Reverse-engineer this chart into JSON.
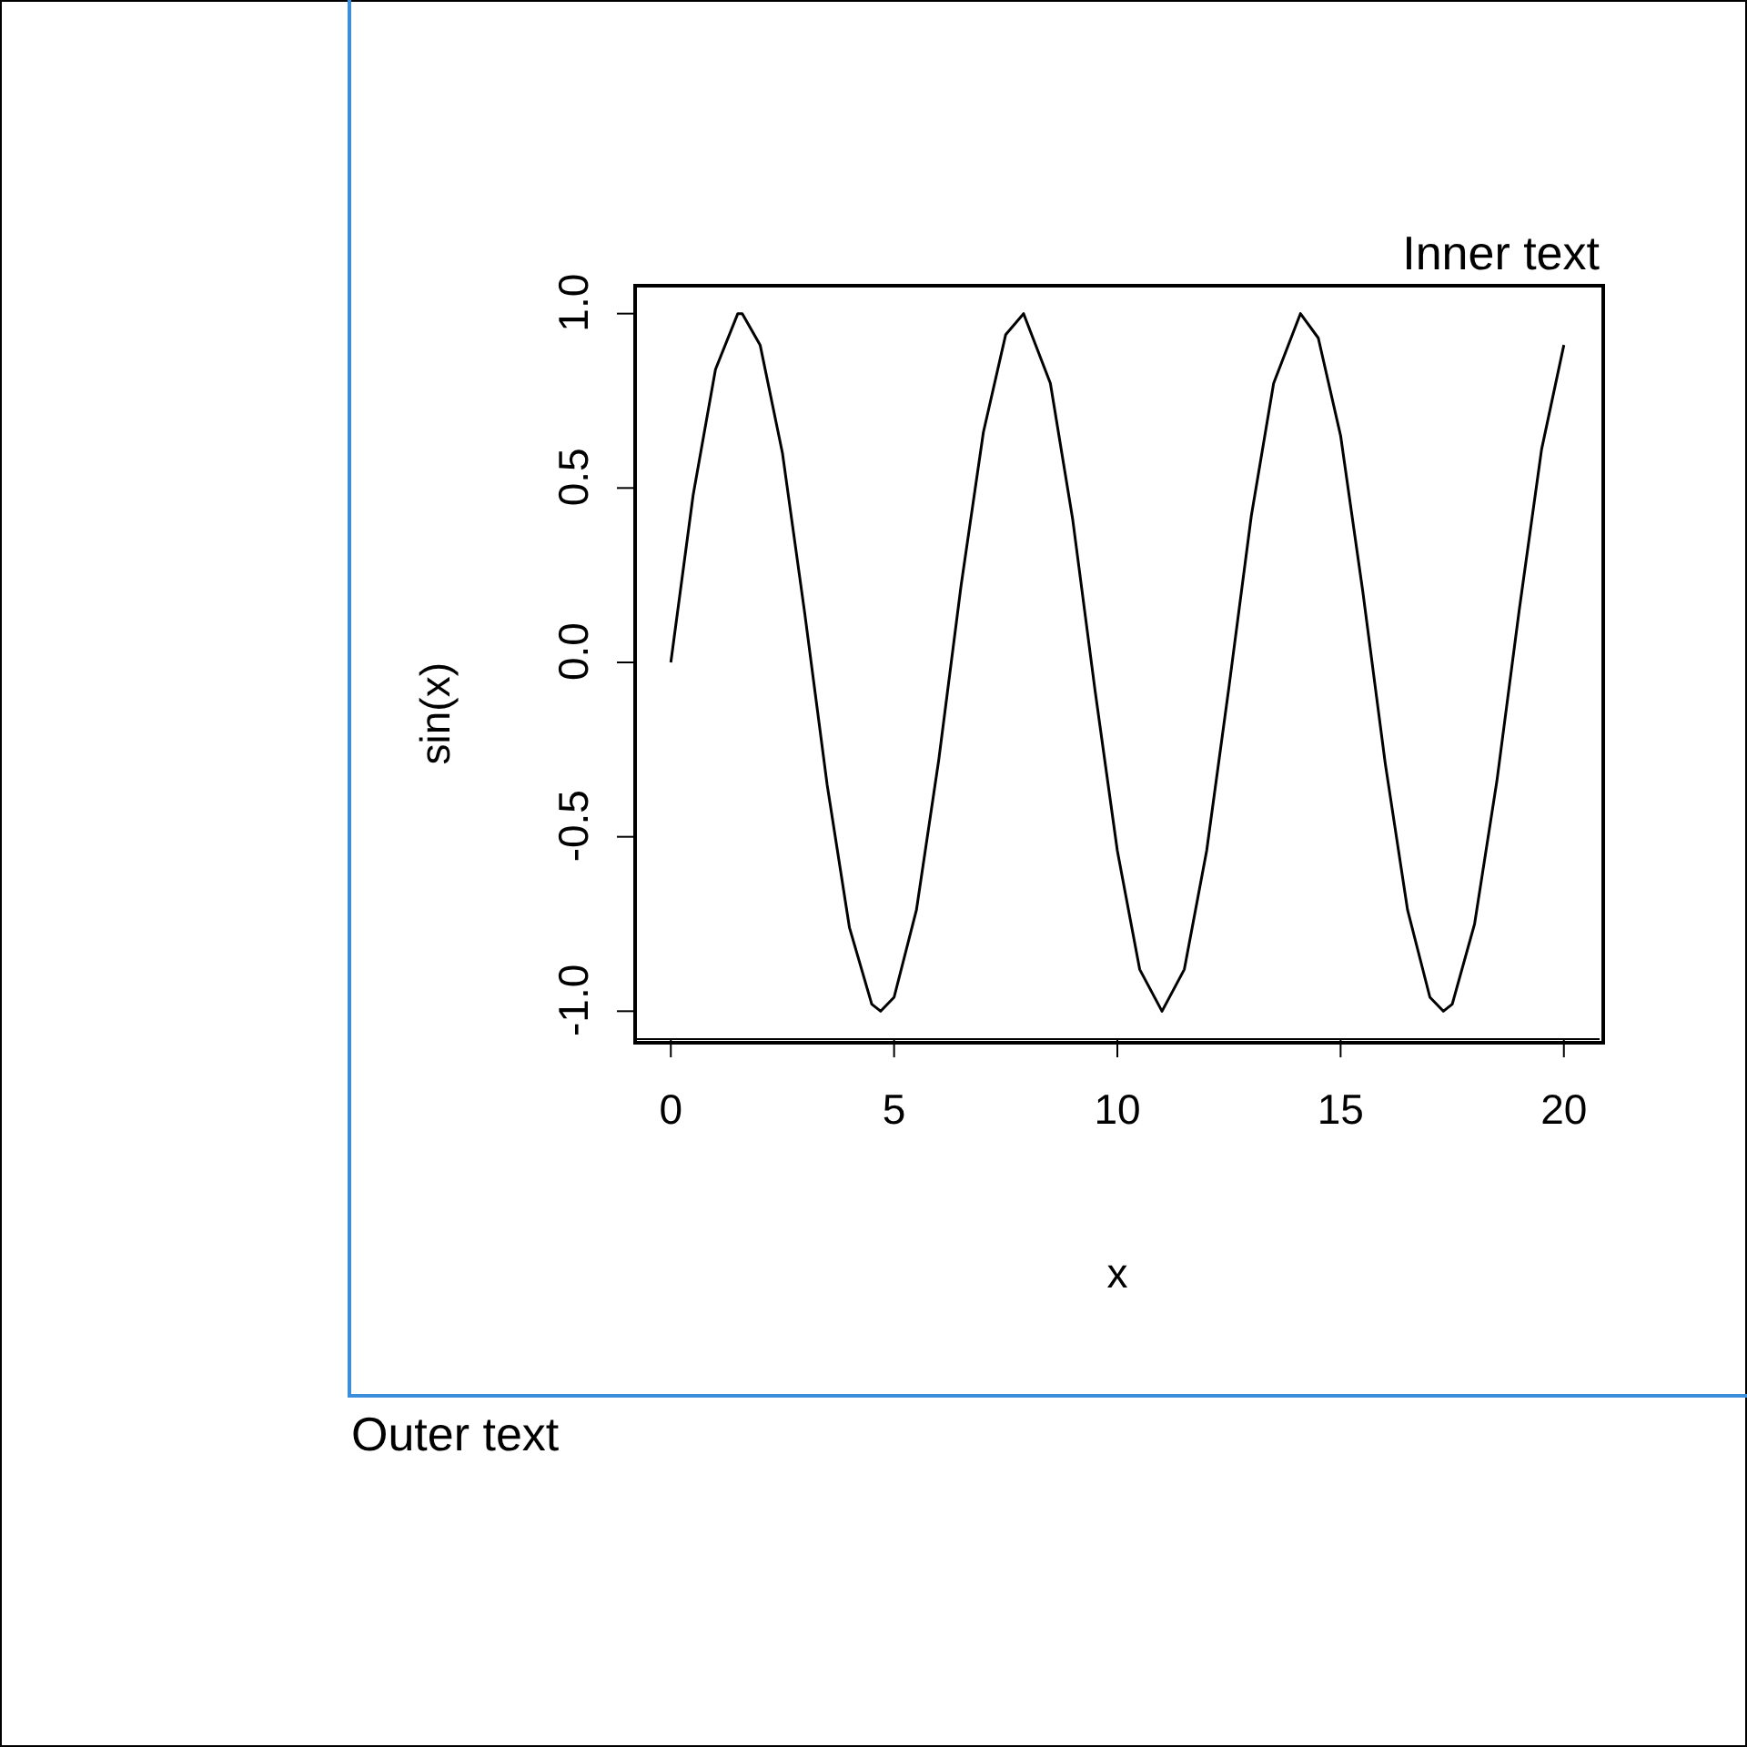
{
  "chart_data": {
    "type": "line",
    "xlabel": "x",
    "ylabel": "sin(x)",
    "annotations": [
      "Inner text",
      "Outer text"
    ],
    "x": [
      0,
      0.5,
      1,
      1.5,
      1.6,
      2,
      2.5,
      3,
      3.5,
      4,
      4.5,
      4.7,
      5,
      5.5,
      6,
      6.5,
      7,
      7.5,
      7.9,
      8.5,
      9,
      9.5,
      10,
      10.5,
      11,
      11.5,
      12,
      12.5,
      13,
      13.5,
      14.1,
      14.5,
      15,
      15.5,
      16,
      16.5,
      17,
      17.3,
      17.5,
      18,
      18.5,
      19,
      19.5,
      20
    ],
    "series": [
      {
        "color": "#000000",
        "values": [
          0,
          0.48,
          0.84,
          1.0,
          1.0,
          0.91,
          0.6,
          0.14,
          -0.35,
          -0.76,
          -0.98,
          -1.0,
          -0.96,
          -0.71,
          -0.28,
          0.22,
          0.66,
          0.94,
          1.0,
          0.8,
          0.41,
          -0.08,
          -0.54,
          -0.88,
          -1.0,
          -0.88,
          -0.54,
          -0.07,
          0.42,
          0.8,
          1.0,
          0.93,
          0.65,
          0.2,
          -0.29,
          -0.71,
          -0.96,
          -1.0,
          -0.98,
          -0.75,
          -0.34,
          0.15,
          0.61,
          0.91
        ]
      }
    ],
    "xlim": [
      -0.8,
      20.8
    ],
    "ylim": [
      -1.08,
      1.08
    ],
    "xticks": [
      0,
      5,
      10,
      15,
      20
    ],
    "yticks": [
      {
        "value": -1,
        "label": "-1.0"
      },
      {
        "value": -0.5,
        "label": "-0.5"
      },
      {
        "value": 0,
        "label": "0.0"
      },
      {
        "value": 0.5,
        "label": "0.5"
      },
      {
        "value": 1,
        "label": "1.0"
      }
    ],
    "grid": false,
    "legend": false,
    "marker": "none",
    "line_style": "solid"
  }
}
